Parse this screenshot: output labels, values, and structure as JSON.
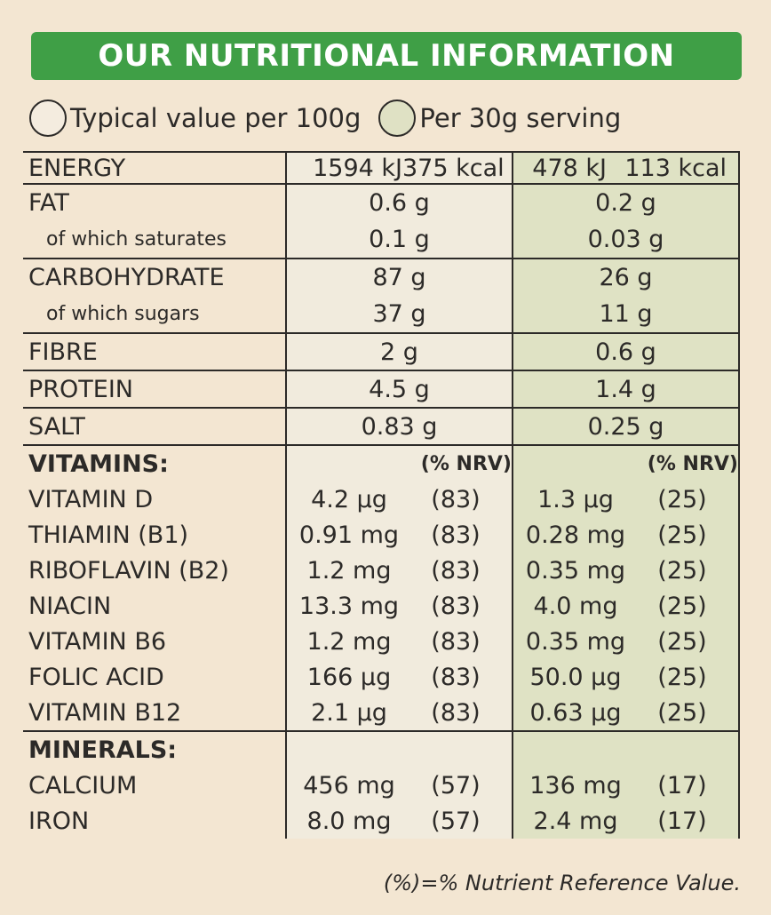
{
  "title": "OUR NUTRITIONAL INFORMATION",
  "legend": {
    "per100": "Typical value per 100g",
    "per30": "Per 30g serving"
  },
  "energy": {
    "label": "ENERGY",
    "kj100": "1594 kJ",
    "kcal100": "375 kcal",
    "kj30": "478 kJ",
    "kcal30": "113 kcal"
  },
  "nutrients": [
    {
      "label": "FAT",
      "v100": "0.6 g",
      "v30": "0.2 g"
    },
    {
      "label": "of which saturates",
      "v100": "0.1 g",
      "v30": "0.03 g"
    },
    {
      "label": "CARBOHYDRATE",
      "v100": "87 g",
      "v30": "26 g"
    },
    {
      "label": "of which sugars",
      "v100": "37 g",
      "v30": "11 g"
    },
    {
      "label": "FIBRE",
      "v100": "2 g",
      "v30": "0.6 g"
    },
    {
      "label": "PROTEIN",
      "v100": "4.5 g",
      "v30": "1.4 g"
    },
    {
      "label": "SALT",
      "v100": "0.83 g",
      "v30": "0.25 g"
    }
  ],
  "vitamins": {
    "header": "VITAMINS:",
    "nrv_label": "(% NRV)",
    "items": [
      {
        "label": "VITAMIN D",
        "a100": "4.2 µg",
        "n100": "(83)",
        "a30": "1.3 µg",
        "n30": "(25)"
      },
      {
        "label": "THIAMIN (B1)",
        "a100": "0.91 mg",
        "n100": "(83)",
        "a30": "0.28 mg",
        "n30": "(25)"
      },
      {
        "label": "RIBOFLAVIN (B2)",
        "a100": "1.2 mg",
        "n100": "(83)",
        "a30": "0.35 mg",
        "n30": "(25)"
      },
      {
        "label": "NIACIN",
        "a100": "13.3 mg",
        "n100": "(83)",
        "a30": "4.0 mg",
        "n30": "(25)"
      },
      {
        "label": "VITAMIN B6",
        "a100": "1.2 mg",
        "n100": "(83)",
        "a30": "0.35 mg",
        "n30": "(25)"
      },
      {
        "label": "FOLIC ACID",
        "a100": "166 µg",
        "n100": "(83)",
        "a30": "50.0 µg",
        "n30": "(25)"
      },
      {
        "label": "VITAMIN B12",
        "a100": "2.1 µg",
        "n100": "(83)",
        "a30": "0.63 µg",
        "n30": "(25)"
      }
    ]
  },
  "minerals": {
    "header": "MINERALS:",
    "items": [
      {
        "label": "CALCIUM",
        "a100": "456 mg",
        "n100": "(57)",
        "a30": "136 mg",
        "n30": "(17)"
      },
      {
        "label": "IRON",
        "a100": "8.0 mg",
        "n100": "(57)",
        "a30": "2.4 mg",
        "n30": "(17)"
      }
    ]
  },
  "footnote": "(%)=% Nutrient Reference Value."
}
